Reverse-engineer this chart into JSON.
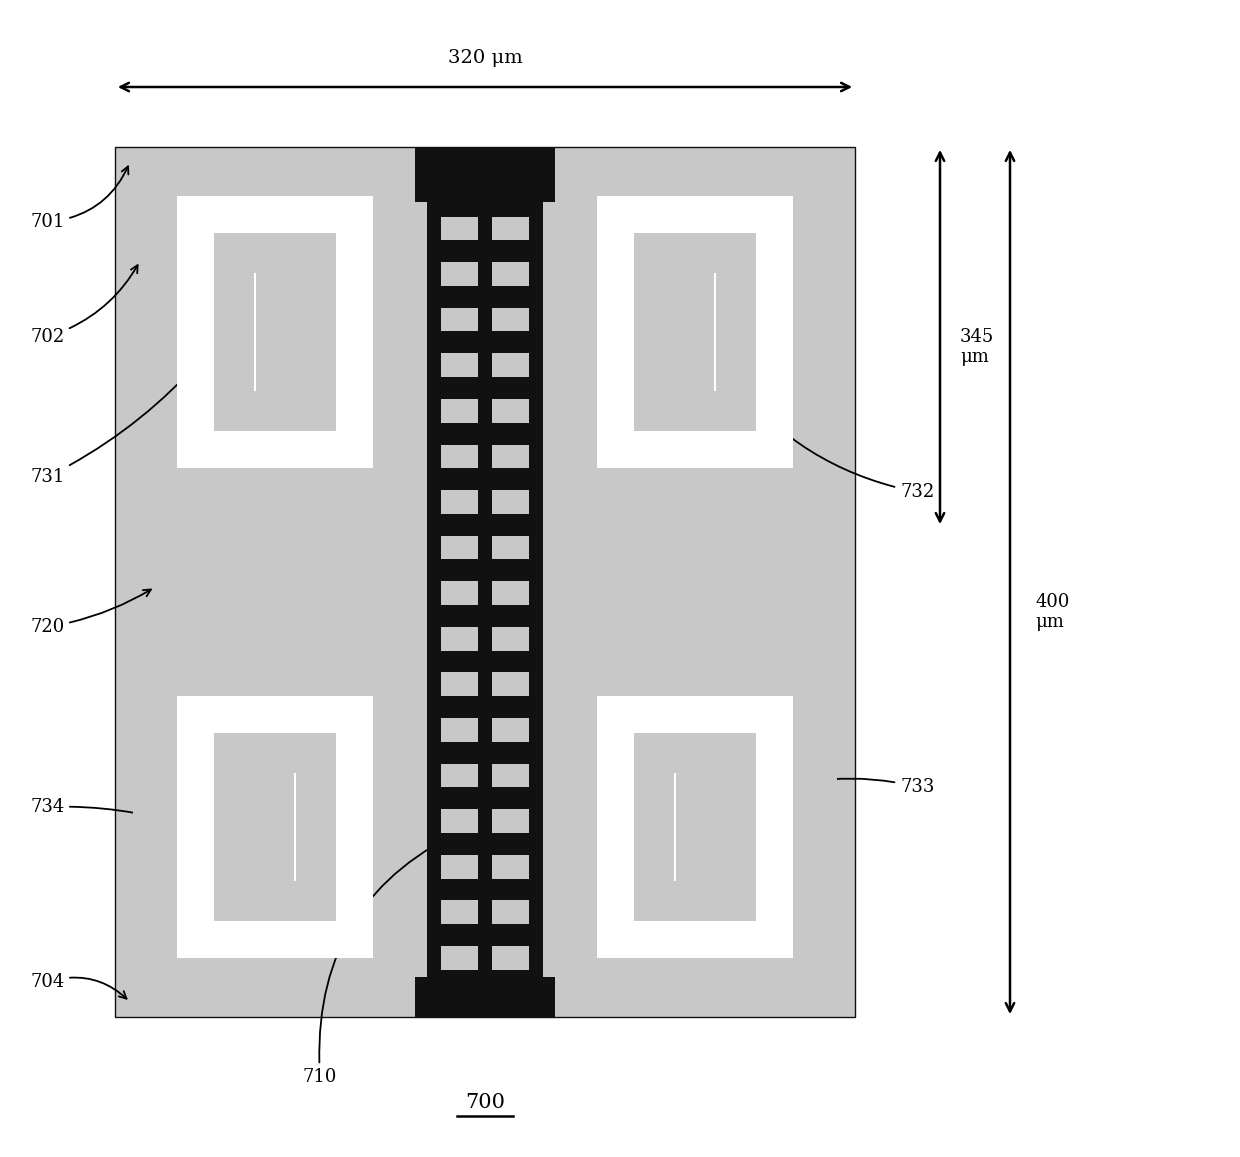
{
  "bg_color": "#ffffff",
  "gray": "#c8c8c8",
  "black": "#111111",
  "white": "#ffffff",
  "fig_width": 12.4,
  "fig_height": 11.57,
  "title": "700",
  "dim_320_label": "320 μm",
  "dim_400_label": "400\nμm",
  "dim_345_label": "345\nμm"
}
